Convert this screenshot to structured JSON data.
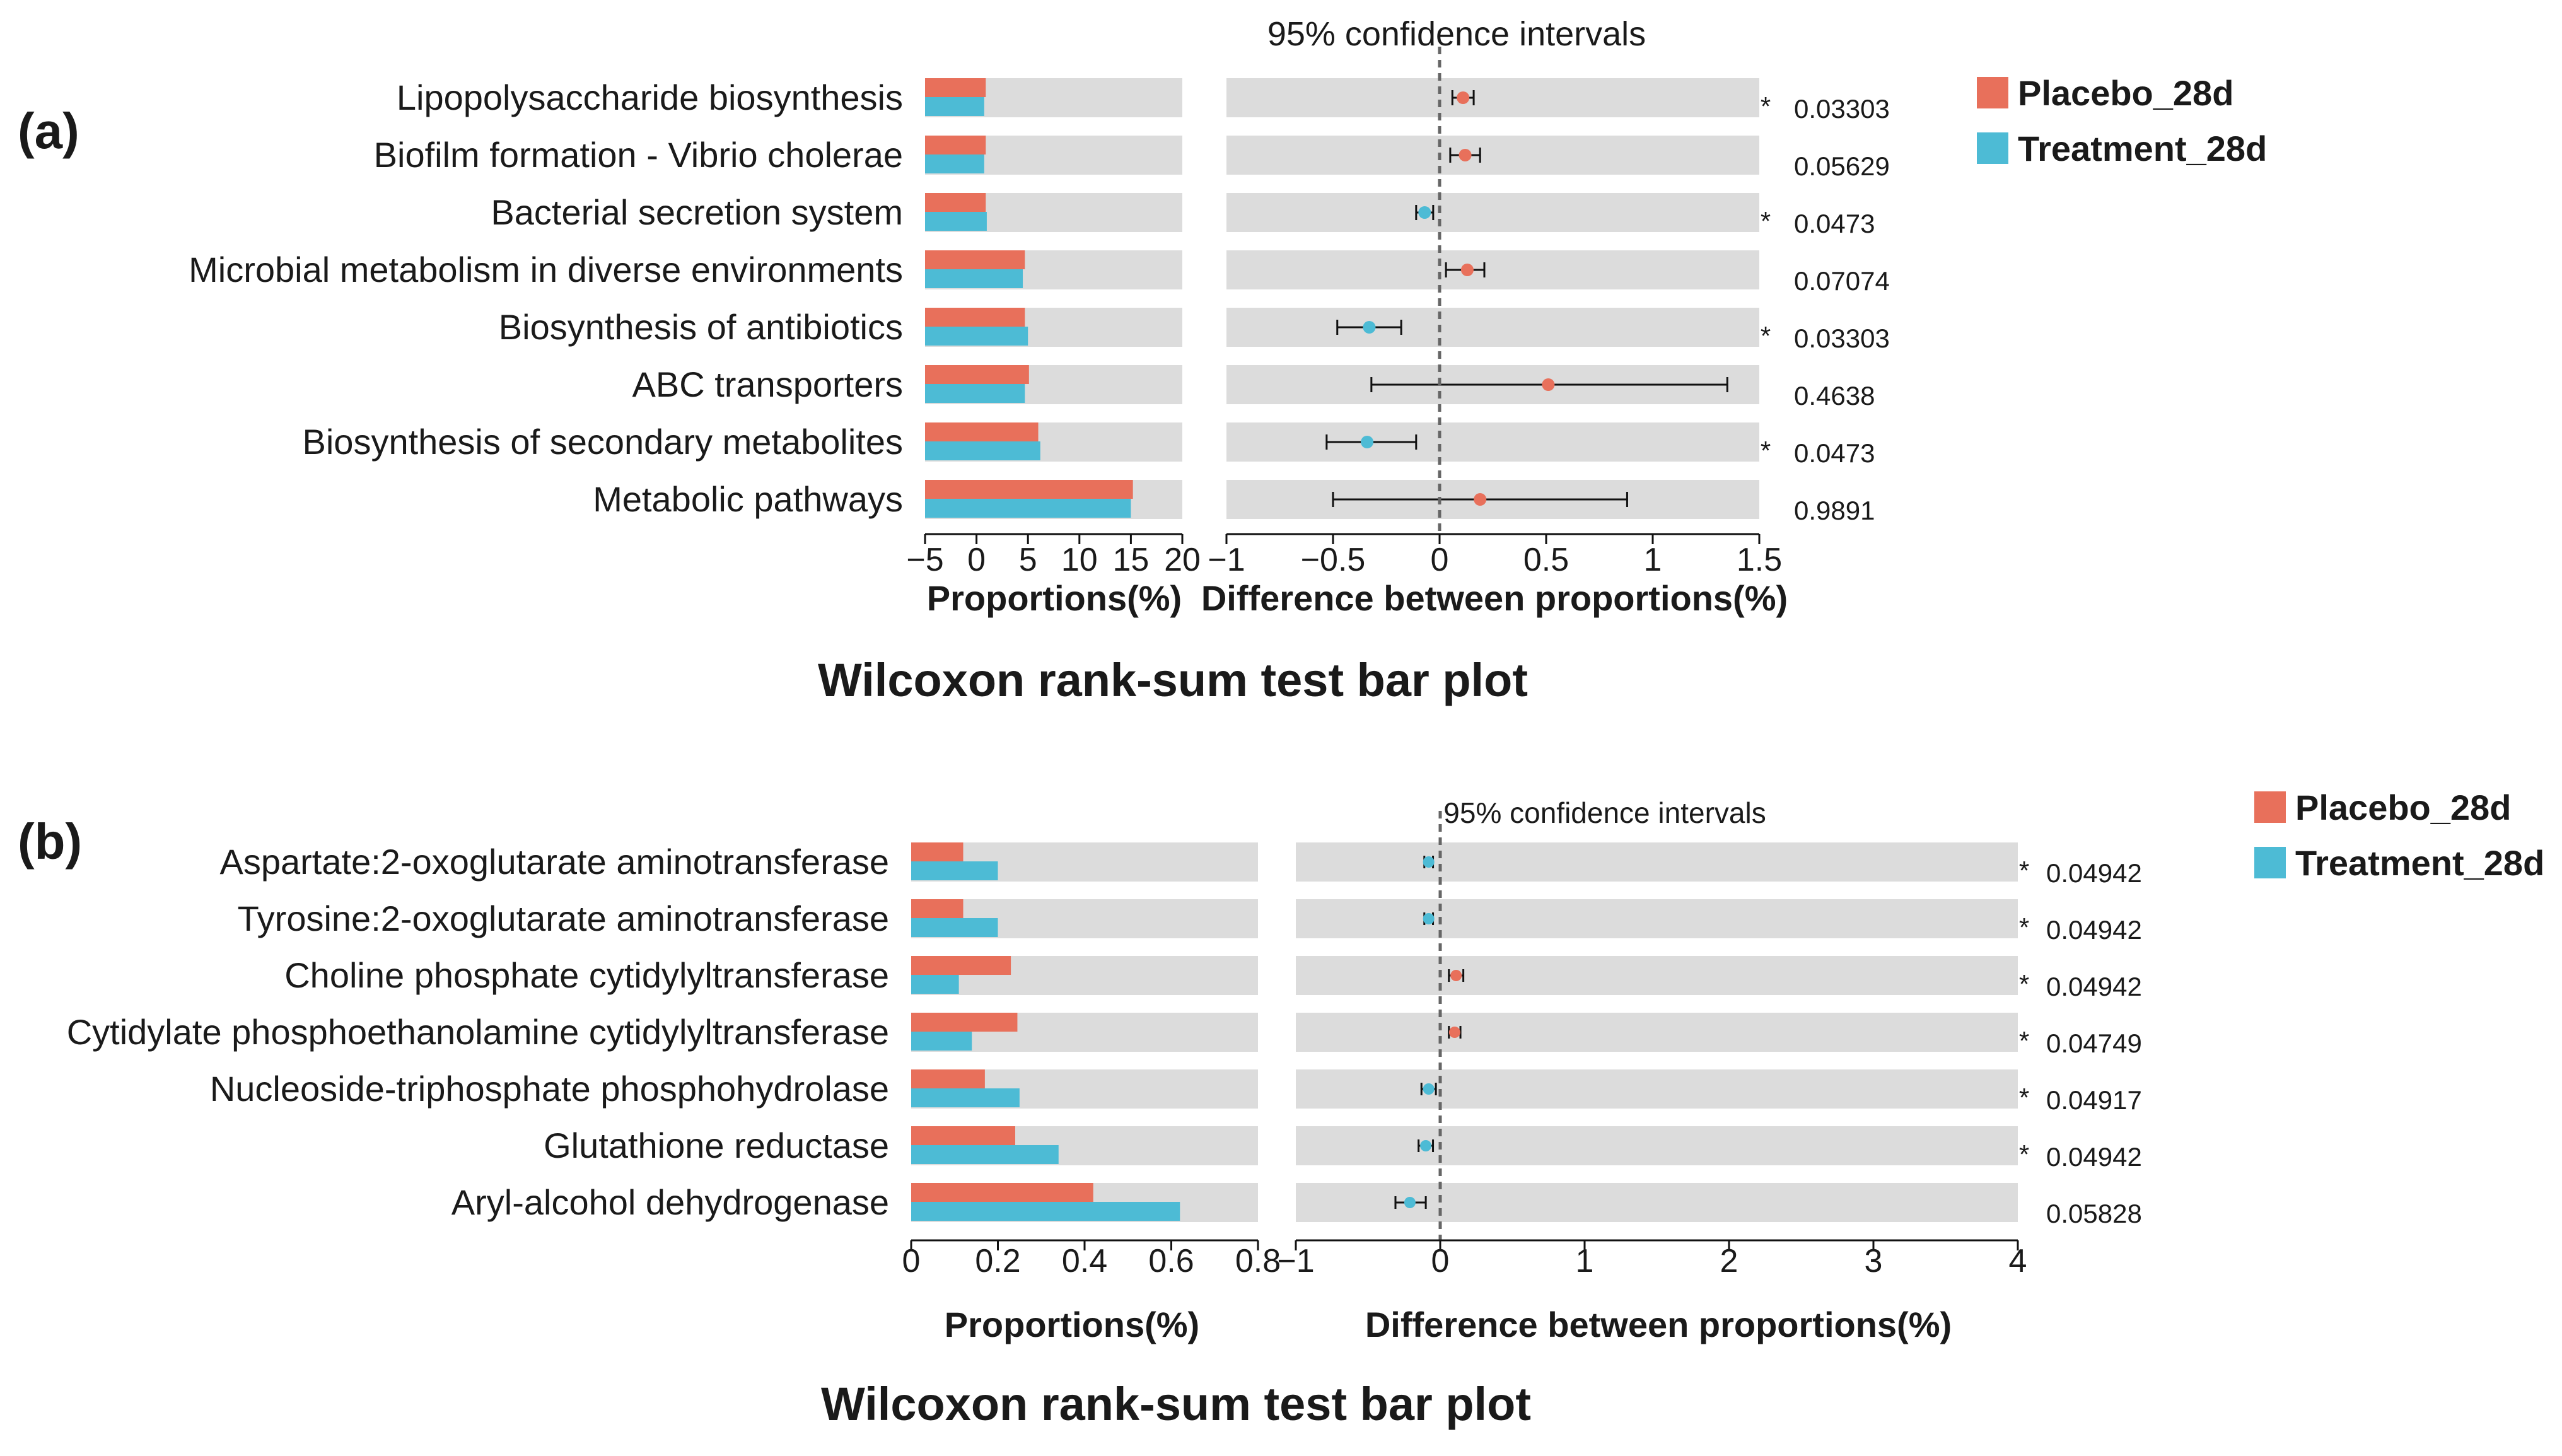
{
  "colors": {
    "placebo": "#E8705B",
    "treatment": "#4DBBD5",
    "track": "#DCDCDC"
  },
  "chart_data": [
    {
      "panel": "(a)",
      "type": "bar",
      "title": "Wilcoxon rank-sum test bar plot",
      "ci_title": "95% confidence intervals",
      "xlabel_left": "Proportions(%)",
      "xlabel_right": "Difference between proportions(%)",
      "left_xlim": [
        -5,
        20
      ],
      "left_ticks": [
        -5,
        0,
        5,
        10,
        15,
        20
      ],
      "left_tick_labels": [
        "−5",
        "0",
        "5",
        "10",
        "15",
        "20"
      ],
      "right_xlim": [
        -1,
        1.5
      ],
      "right_ticks": [
        -1,
        -0.5,
        0,
        0.5,
        1,
        1.5
      ],
      "right_tick_labels": [
        "−1",
        "−0.5",
        "0",
        "0.5",
        "1",
        "1.5"
      ],
      "legend": [
        "Placebo_28d",
        "Treatment_28d"
      ],
      "categories": [
        "Lipopolysaccharide biosynthesis",
        "Biofilm formation - Vibrio cholerae",
        "Bacterial secretion system",
        "Microbial metabolism in diverse environments",
        "Biosynthesis of antibiotics",
        "ABC transporters",
        "Biosynthesis of secondary metabolites",
        "Metabolic pathways"
      ],
      "series": [
        {
          "name": "Placebo_28d",
          "values": [
            0.9,
            0.9,
            0.9,
            4.7,
            4.7,
            5.1,
            6.0,
            15.2
          ]
        },
        {
          "name": "Treatment_28d",
          "values": [
            0.75,
            0.75,
            1.0,
            4.5,
            5.0,
            4.7,
            6.2,
            15.0
          ]
        }
      ],
      "difference": [
        0.11,
        0.12,
        -0.07,
        0.13,
        -0.33,
        0.51,
        -0.34,
        0.19
      ],
      "ci_low": [
        0.06,
        0.05,
        -0.11,
        0.03,
        -0.48,
        -0.32,
        -0.53,
        -0.5
      ],
      "ci_high": [
        0.16,
        0.19,
        -0.03,
        0.21,
        -0.18,
        1.35,
        -0.11,
        0.88
      ],
      "significant": [
        true,
        false,
        true,
        false,
        true,
        false,
        true,
        false
      ],
      "p_values": [
        "0.03303",
        "0.05629",
        "0.0473",
        "0.07074",
        "0.03303",
        "0.4638",
        "0.0473",
        "0.9891"
      ]
    },
    {
      "panel": "(b)",
      "type": "bar",
      "title": "Wilcoxon rank-sum test bar plot",
      "ci_title": "95% confidence intervals",
      "xlabel_left": "Proportions(%)",
      "xlabel_right": "Difference between proportions(%)",
      "left_xlim": [
        0,
        0.8
      ],
      "left_ticks": [
        0,
        0.2,
        0.4,
        0.6,
        0.8
      ],
      "left_tick_labels": [
        "0",
        "0.2",
        "0.4",
        "0.6",
        "0.8"
      ],
      "right_xlim": [
        -1,
        4
      ],
      "right_ticks": [
        -1,
        0,
        1,
        2,
        3,
        4
      ],
      "right_tick_labels": [
        "−1",
        "0",
        "1",
        "2",
        "3",
        "4"
      ],
      "legend": [
        "Placebo_28d",
        "Treatment_28d"
      ],
      "categories": [
        "Aspartate:2-oxoglutarate aminotransferase",
        "Tyrosine:2-oxoglutarate aminotransferase",
        "Choline phosphate cytidylyltransferase",
        "Cytidylate phosphoethanolamine cytidylyltransferase",
        "Nucleoside-triphosphate phosphohydrolase",
        "Glutathione reductase",
        "Aryl-alcohol dehydrogenase"
      ],
      "series": [
        {
          "name": "Placebo_28d",
          "values": [
            0.12,
            0.12,
            0.23,
            0.245,
            0.17,
            0.24,
            0.42
          ]
        },
        {
          "name": "Treatment_28d",
          "values": [
            0.2,
            0.2,
            0.11,
            0.14,
            0.25,
            0.34,
            0.62
          ]
        }
      ],
      "difference": [
        -0.08,
        -0.08,
        0.11,
        0.1,
        -0.08,
        -0.1,
        -0.21
      ],
      "ci_low": [
        -0.11,
        -0.11,
        0.06,
        0.06,
        -0.13,
        -0.15,
        -0.31
      ],
      "ci_high": [
        -0.05,
        -0.05,
        0.16,
        0.14,
        -0.03,
        -0.05,
        -0.1
      ],
      "significant": [
        true,
        true,
        true,
        true,
        true,
        true,
        false
      ],
      "p_values": [
        "0.04942",
        "0.04942",
        "0.04942",
        "0.04749",
        "0.04917",
        "0.04942",
        "0.05828"
      ]
    }
  ]
}
